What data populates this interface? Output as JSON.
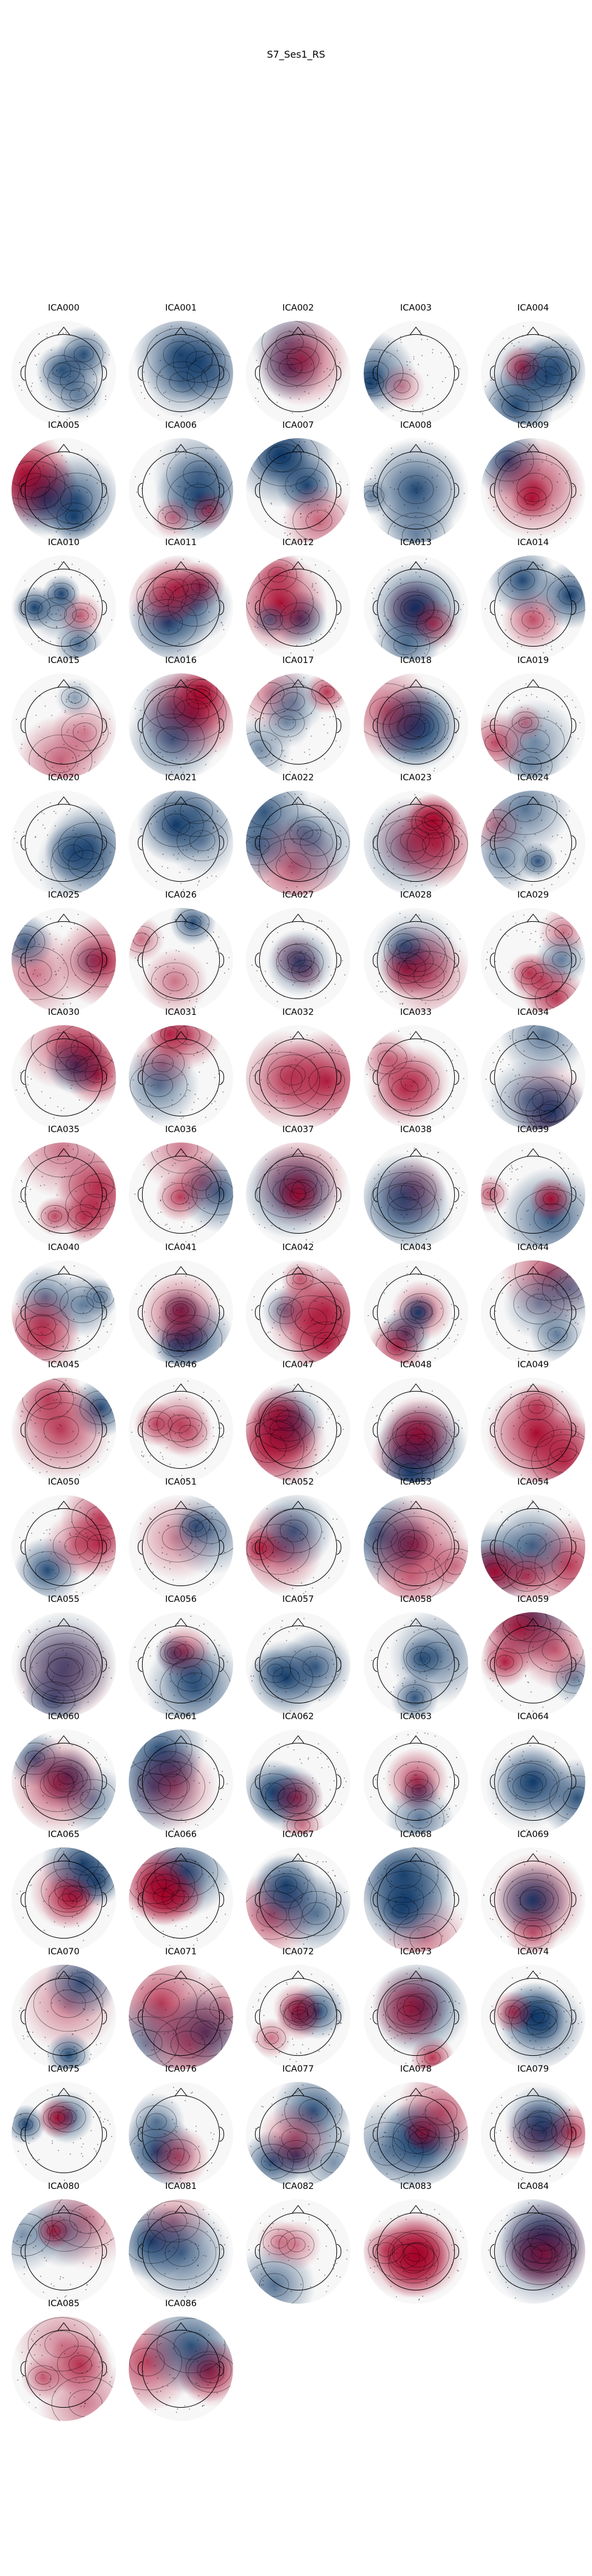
{
  "figure": {
    "title": "S7_Ses1_RS"
  },
  "chart_data": {
    "type": "topomap-grid",
    "title": "S7_Ses1_RS",
    "colormap": "RdBu_r",
    "colors": {
      "positive": "#a50026",
      "neutral": "#f7f7f7",
      "negative": "#053061"
    },
    "columns": 5,
    "components": [
      {
        "label": "ICA000"
      },
      {
        "label": "ICA001"
      },
      {
        "label": "ICA002"
      },
      {
        "label": "ICA003"
      },
      {
        "label": "ICA004"
      },
      {
        "label": "ICA005"
      },
      {
        "label": "ICA006"
      },
      {
        "label": "ICA007"
      },
      {
        "label": "ICA008"
      },
      {
        "label": "ICA009"
      },
      {
        "label": "ICA010"
      },
      {
        "label": "ICA011"
      },
      {
        "label": "ICA012"
      },
      {
        "label": "ICA013"
      },
      {
        "label": "ICA014"
      },
      {
        "label": "ICA015"
      },
      {
        "label": "ICA016"
      },
      {
        "label": "ICA017"
      },
      {
        "label": "ICA018"
      },
      {
        "label": "ICA019"
      },
      {
        "label": "ICA020"
      },
      {
        "label": "ICA021"
      },
      {
        "label": "ICA022"
      },
      {
        "label": "ICA023"
      },
      {
        "label": "ICA024"
      },
      {
        "label": "ICA025"
      },
      {
        "label": "ICA026"
      },
      {
        "label": "ICA027"
      },
      {
        "label": "ICA028"
      },
      {
        "label": "ICA029"
      },
      {
        "label": "ICA030"
      },
      {
        "label": "ICA031"
      },
      {
        "label": "ICA032"
      },
      {
        "label": "ICA033"
      },
      {
        "label": "ICA034"
      },
      {
        "label": "ICA035"
      },
      {
        "label": "ICA036"
      },
      {
        "label": "ICA037"
      },
      {
        "label": "ICA038"
      },
      {
        "label": "ICA039"
      },
      {
        "label": "ICA040"
      },
      {
        "label": "ICA041"
      },
      {
        "label": "ICA042"
      },
      {
        "label": "ICA043"
      },
      {
        "label": "ICA044"
      },
      {
        "label": "ICA045"
      },
      {
        "label": "ICA046"
      },
      {
        "label": "ICA047"
      },
      {
        "label": "ICA048"
      },
      {
        "label": "ICA049"
      },
      {
        "label": "ICA050"
      },
      {
        "label": "ICA051"
      },
      {
        "label": "ICA052"
      },
      {
        "label": "ICA053"
      },
      {
        "label": "ICA054"
      },
      {
        "label": "ICA055"
      },
      {
        "label": "ICA056"
      },
      {
        "label": "ICA057"
      },
      {
        "label": "ICA058"
      },
      {
        "label": "ICA059"
      },
      {
        "label": "ICA060"
      },
      {
        "label": "ICA061"
      },
      {
        "label": "ICA062"
      },
      {
        "label": "ICA063"
      },
      {
        "label": "ICA064"
      },
      {
        "label": "ICA065"
      },
      {
        "label": "ICA066"
      },
      {
        "label": "ICA067"
      },
      {
        "label": "ICA068"
      },
      {
        "label": "ICA069"
      },
      {
        "label": "ICA070"
      },
      {
        "label": "ICA071"
      },
      {
        "label": "ICA072"
      },
      {
        "label": "ICA073"
      },
      {
        "label": "ICA074"
      },
      {
        "label": "ICA075"
      },
      {
        "label": "ICA076"
      },
      {
        "label": "ICA077"
      },
      {
        "label": "ICA078"
      },
      {
        "label": "ICA079"
      },
      {
        "label": "ICA080"
      },
      {
        "label": "ICA081"
      },
      {
        "label": "ICA082"
      },
      {
        "label": "ICA083"
      },
      {
        "label": "ICA084"
      },
      {
        "label": "ICA085"
      },
      {
        "label": "ICA086"
      }
    ]
  }
}
